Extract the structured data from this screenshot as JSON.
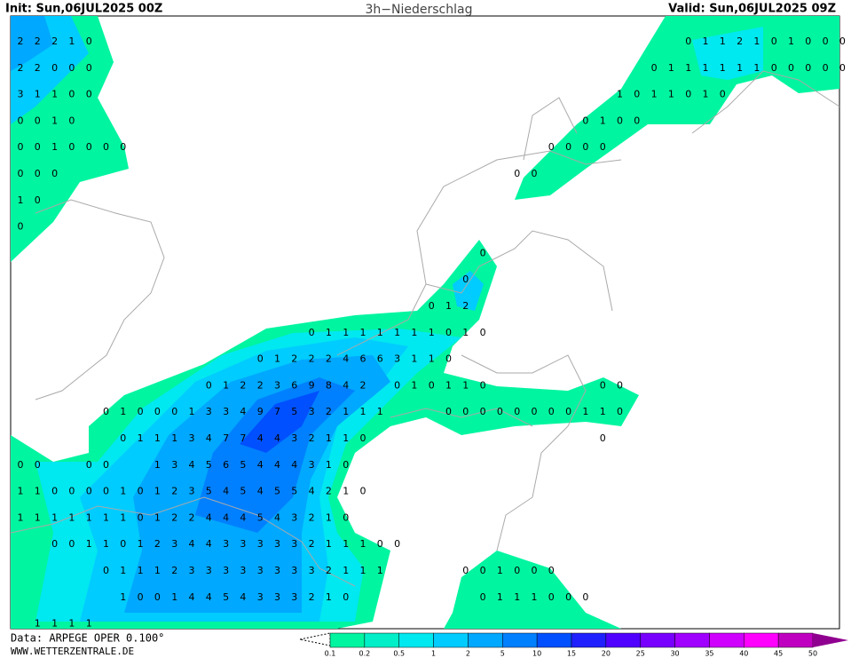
{
  "header": {
    "init": "Init: Sun,06JUL2025 00Z",
    "title": "3h−Niederschlag",
    "valid": "Valid: Sun,06JUL2025 09Z"
  },
  "footer": {
    "source": "Data: ARPEGE OPER 0.100°",
    "site": "WWW.WETTERZENTRALE.DE"
  },
  "legend": [
    {
      "label": 0.1,
      "color": "#00f5a0"
    },
    {
      "label": 0.2,
      "color": "#00eec8"
    },
    {
      "label": 0.5,
      "color": "#00e8f0"
    },
    {
      "label": 1,
      "color": "#00ccff"
    },
    {
      "label": 2,
      "color": "#00a8ff"
    },
    {
      "label": 5,
      "color": "#0080ff"
    },
    {
      "label": 10,
      "color": "#0050ff"
    },
    {
      "label": 15,
      "color": "#2020ff"
    },
    {
      "label": 20,
      "color": "#5000ff"
    },
    {
      "label": 25,
      "color": "#7800ff"
    },
    {
      "label": 30,
      "color": "#a000ff"
    },
    {
      "label": 35,
      "color": "#d000ff"
    },
    {
      "label": 40,
      "color": "#ff00ff"
    },
    {
      "label": 45,
      "color": "#c000c0"
    },
    {
      "label": 50,
      "color": "#900090"
    }
  ],
  "grid_values": [
    [
      2,
      2,
      2,
      1,
      0,
      null,
      null,
      null,
      null,
      null,
      null,
      null,
      null,
      null,
      null,
      null,
      null,
      null,
      null,
      null,
      null,
      null,
      null,
      null,
      null,
      null,
      null,
      null,
      null,
      null,
      null,
      null,
      null,
      null,
      null,
      null,
      null,
      null,
      null,
      0,
      1,
      1,
      2,
      1,
      0,
      1,
      0,
      0,
      0
    ],
    [
      2,
      2,
      0,
      0,
      0,
      null,
      null,
      null,
      null,
      null,
      null,
      null,
      null,
      null,
      null,
      null,
      null,
      null,
      null,
      null,
      null,
      null,
      null,
      null,
      null,
      null,
      null,
      null,
      null,
      null,
      null,
      null,
      null,
      null,
      null,
      null,
      null,
      0,
      1,
      1,
      1,
      1,
      1,
      1,
      0,
      0,
      0,
      0,
      0
    ],
    [
      3,
      1,
      1,
      0,
      0,
      null,
      null,
      null,
      null,
      null,
      null,
      null,
      null,
      null,
      null,
      null,
      null,
      null,
      null,
      null,
      null,
      null,
      null,
      null,
      null,
      null,
      null,
      null,
      null,
      null,
      null,
      null,
      null,
      null,
      null,
      1,
      0,
      1,
      1,
      0,
      1,
      0
    ],
    [
      0,
      0,
      1,
      0,
      null,
      null,
      null,
      null,
      null,
      null,
      null,
      null,
      null,
      null,
      null,
      null,
      null,
      null,
      null,
      null,
      null,
      null,
      null,
      null,
      null,
      null,
      null,
      null,
      null,
      null,
      null,
      null,
      null,
      0,
      1,
      0,
      0
    ],
    [
      0,
      0,
      1,
      0,
      0,
      0,
      0,
      null,
      null,
      null,
      null,
      null,
      null,
      null,
      null,
      null,
      null,
      null,
      null,
      null,
      null,
      null,
      null,
      null,
      null,
      null,
      null,
      null,
      null,
      null,
      null,
      0,
      0,
      0,
      0
    ],
    [
      0,
      0,
      0,
      null,
      null,
      null,
      null,
      null,
      null,
      null,
      null,
      null,
      null,
      null,
      null,
      null,
      null,
      null,
      null,
      null,
      null,
      null,
      null,
      null,
      null,
      null,
      null,
      null,
      null,
      0,
      0
    ],
    [
      1,
      0
    ],
    [
      0
    ],
    [
      null,
      null,
      null,
      null,
      null,
      null,
      null,
      null,
      null,
      null,
      null,
      null,
      null,
      null,
      null,
      null,
      null,
      null,
      null,
      null,
      null,
      null,
      null,
      null,
      null,
      null,
      null,
      0
    ],
    [
      null,
      null,
      null,
      null,
      null,
      null,
      null,
      null,
      null,
      null,
      null,
      null,
      null,
      null,
      null,
      null,
      null,
      null,
      null,
      null,
      null,
      null,
      null,
      null,
      null,
      null,
      0
    ],
    [
      null,
      null,
      null,
      null,
      null,
      null,
      null,
      null,
      null,
      null,
      null,
      null,
      null,
      null,
      null,
      null,
      null,
      null,
      null,
      null,
      null,
      null,
      null,
      null,
      0,
      1,
      2
    ],
    [
      null,
      null,
      null,
      null,
      null,
      null,
      null,
      null,
      null,
      null,
      null,
      null,
      null,
      null,
      null,
      null,
      null,
      0,
      1,
      1,
      1,
      1,
      1,
      1,
      1,
      0,
      1,
      0
    ],
    [
      null,
      null,
      null,
      null,
      null,
      null,
      null,
      null,
      null,
      null,
      null,
      null,
      null,
      null,
      0,
      1,
      2,
      2,
      2,
      4,
      6,
      6,
      3,
      1,
      1,
      0
    ],
    [
      null,
      null,
      null,
      null,
      null,
      null,
      null,
      null,
      null,
      null,
      null,
      0,
      1,
      2,
      2,
      3,
      6,
      9,
      8,
      4,
      2,
      null,
      0,
      1,
      0,
      1,
      1,
      0,
      null,
      null,
      null,
      null,
      null,
      null,
      0,
      0
    ],
    [
      null,
      null,
      null,
      null,
      null,
      0,
      1,
      0,
      0,
      0,
      1,
      3,
      3,
      4,
      9,
      7,
      5,
      3,
      2,
      1,
      1,
      1,
      null,
      null,
      null,
      0,
      0,
      0,
      0,
      0,
      0,
      0,
      0,
      1,
      1,
      0
    ],
    [
      null,
      null,
      null,
      null,
      null,
      null,
      0,
      1,
      1,
      1,
      3,
      4,
      7,
      7,
      4,
      4,
      3,
      2,
      1,
      1,
      0,
      null,
      null,
      null,
      null,
      null,
      null,
      null,
      null,
      null,
      null,
      null,
      null,
      null,
      0
    ],
    [
      0,
      0,
      null,
      null,
      0,
      0,
      null,
      null,
      1,
      3,
      4,
      5,
      6,
      5,
      4,
      4,
      4,
      3,
      1,
      0
    ],
    [
      1,
      1,
      0,
      0,
      0,
      0,
      1,
      0,
      1,
      2,
      3,
      5,
      4,
      5,
      4,
      5,
      5,
      4,
      2,
      1,
      0
    ],
    [
      1,
      1,
      1,
      1,
      1,
      1,
      1,
      0,
      1,
      2,
      2,
      4,
      4,
      4,
      5,
      4,
      3,
      2,
      1,
      0
    ],
    [
      null,
      null,
      0,
      0,
      1,
      1,
      0,
      1,
      2,
      3,
      4,
      4,
      3,
      3,
      3,
      3,
      3,
      2,
      1,
      1,
      1,
      0,
      0
    ],
    [
      null,
      null,
      null,
      null,
      null,
      0,
      1,
      1,
      1,
      2,
      3,
      3,
      3,
      3,
      3,
      3,
      3,
      3,
      2,
      1,
      1,
      1,
      null,
      null,
      null,
      null,
      0,
      0,
      1,
      0,
      0,
      0
    ],
    [
      null,
      null,
      null,
      null,
      null,
      null,
      1,
      0,
      0,
      1,
      4,
      4,
      5,
      4,
      3,
      3,
      3,
      2,
      1,
      0,
      null,
      null,
      null,
      null,
      null,
      null,
      null,
      0,
      1,
      1,
      1,
      0,
      0,
      0
    ],
    [
      null,
      1,
      1,
      1,
      1
    ]
  ]
}
